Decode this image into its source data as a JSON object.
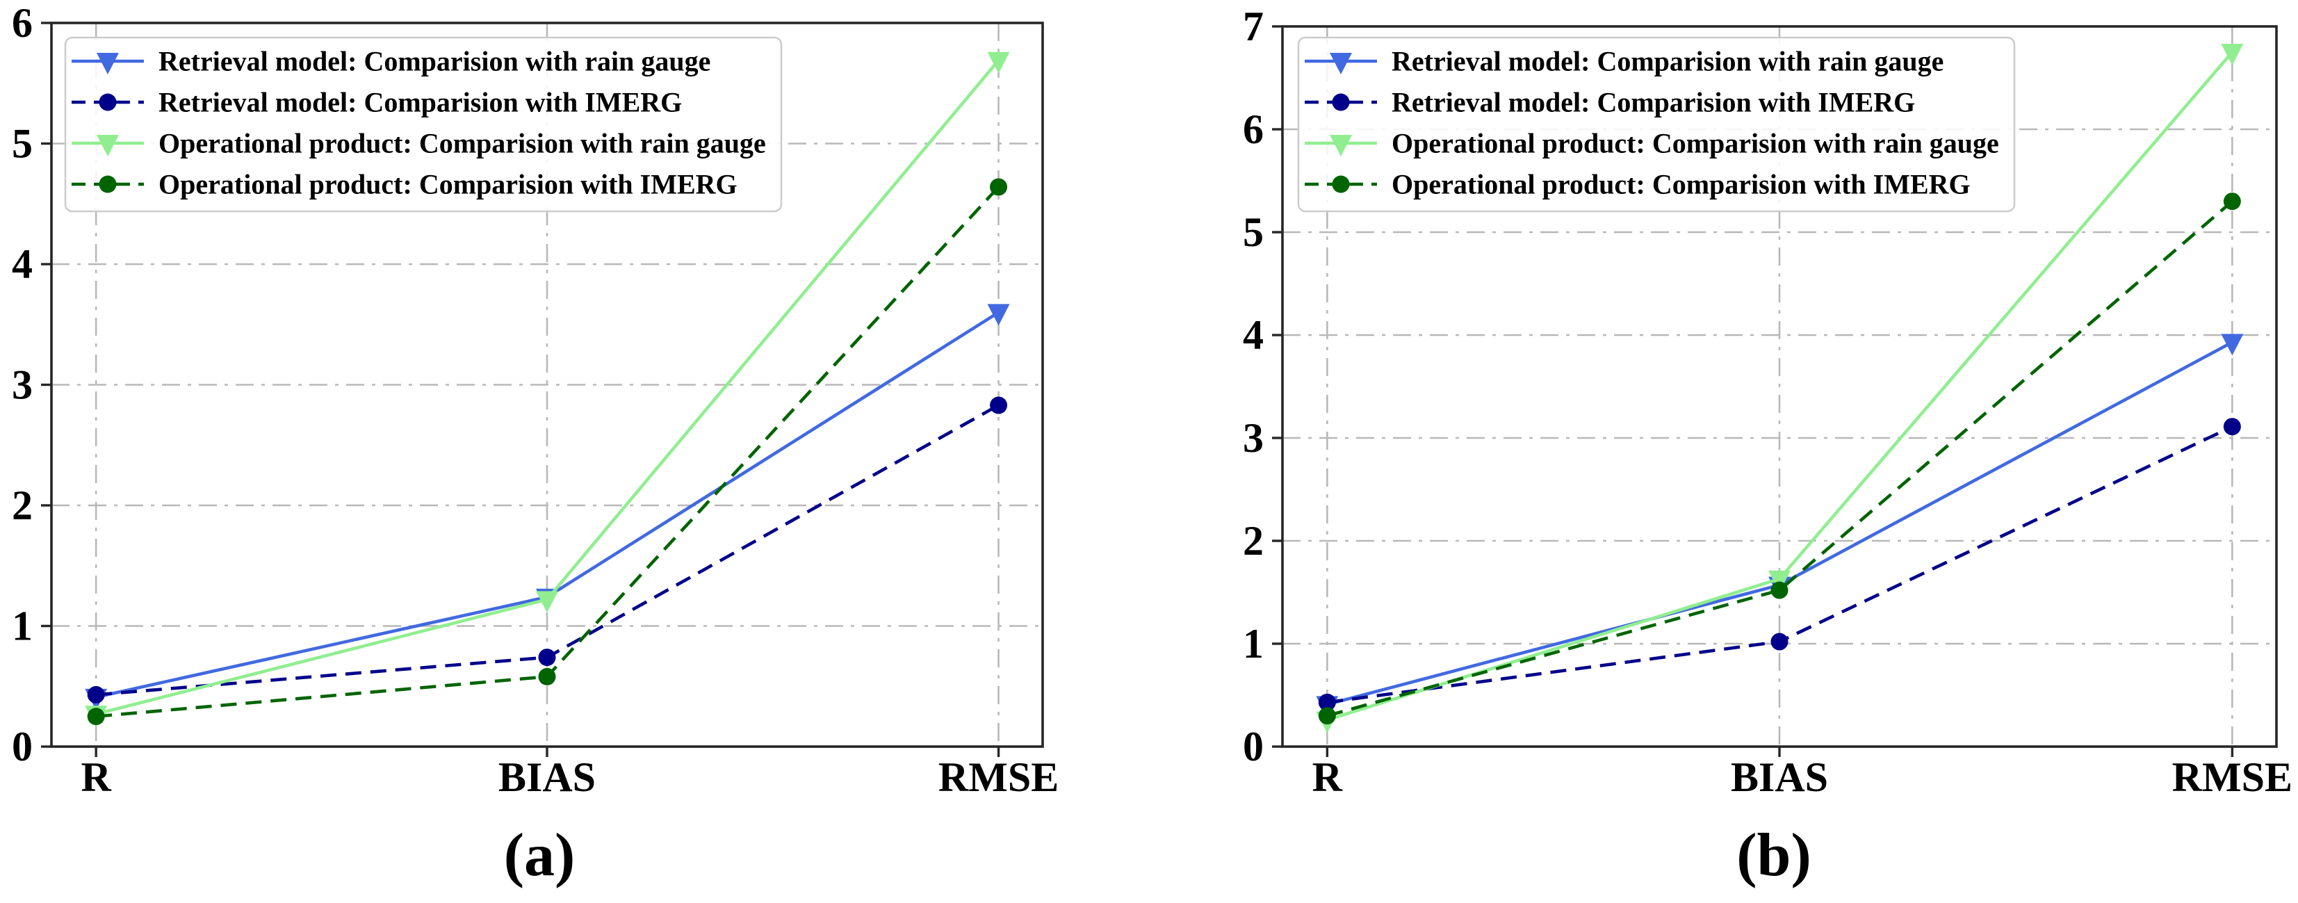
{
  "figure": {
    "panels": [
      {
        "caption": "(a)"
      },
      {
        "caption": "(b)"
      }
    ]
  },
  "style": {
    "background": "#ffffff",
    "spine_color": "#262626",
    "grid_color": "#b8b8b8",
    "tick_label_color": "#000000",
    "legend_border_color": "#cccccc",
    "legend_fill": "rgba(255,255,255,0.85)"
  },
  "chart_data": [
    {
      "type": "line",
      "title": "",
      "xlabel": "",
      "ylabel": "",
      "categories": [
        "R",
        "BIAS",
        "RMSE"
      ],
      "ylim": [
        0,
        6
      ],
      "yticks": [
        0,
        1,
        2,
        3,
        4,
        5,
        6
      ],
      "grid": "dash-dot gray at category x positions and integer y ticks",
      "legend_position": "upper left",
      "series": [
        {
          "id": "retrieval-rain-gauge",
          "name": "Retrieval model: Comparision with rain gauge",
          "color": "#4169e1",
          "line_style": "solid",
          "marker": "triangle-down",
          "values": [
            0.41,
            1.24,
            3.6
          ]
        },
        {
          "id": "retrieval-imerg",
          "name": "Retrieval model: Comparision with IMERG",
          "color": "#00008b",
          "line_style": "dashed",
          "marker": "circle",
          "values": [
            0.43,
            0.74,
            2.83
          ]
        },
        {
          "id": "operational-rain-gauge",
          "name": "Operational product: Comparision with rain gauge",
          "color": "#90ee90",
          "line_style": "solid",
          "marker": "triangle-down",
          "values": [
            0.27,
            1.22,
            5.69
          ]
        },
        {
          "id": "operational-imerg",
          "name": "Operational product: Comparision with IMERG",
          "color": "#006400",
          "line_style": "dashed",
          "marker": "circle",
          "values": [
            0.25,
            0.58,
            4.64
          ]
        }
      ]
    },
    {
      "type": "line",
      "title": "",
      "xlabel": "",
      "ylabel": "",
      "categories": [
        "R",
        "BIAS",
        "RMSE"
      ],
      "ylim": [
        0,
        7
      ],
      "yticks": [
        0,
        1,
        2,
        3,
        4,
        5,
        6,
        7
      ],
      "grid": "dash-dot gray at category x positions and integer y ticks",
      "legend_position": "upper left",
      "series": [
        {
          "id": "retrieval-rain-gauge",
          "name": "Retrieval model: Comparision with rain gauge",
          "color": "#4169e1",
          "line_style": "solid",
          "marker": "triangle-down",
          "values": [
            0.41,
            1.57,
            3.93
          ]
        },
        {
          "id": "retrieval-imerg",
          "name": "Retrieval model: Comparision with IMERG",
          "color": "#00008b",
          "line_style": "dashed",
          "marker": "circle",
          "values": [
            0.43,
            1.02,
            3.11
          ]
        },
        {
          "id": "operational-rain-gauge",
          "name": "Operational product: Comparision with rain gauge",
          "color": "#90ee90",
          "line_style": "solid",
          "marker": "triangle-down",
          "values": [
            0.26,
            1.63,
            6.75
          ]
        },
        {
          "id": "operational-imerg",
          "name": "Operational product: Comparision with IMERG",
          "color": "#006400",
          "line_style": "dashed",
          "marker": "circle",
          "values": [
            0.3,
            1.52,
            5.3
          ]
        }
      ]
    }
  ]
}
